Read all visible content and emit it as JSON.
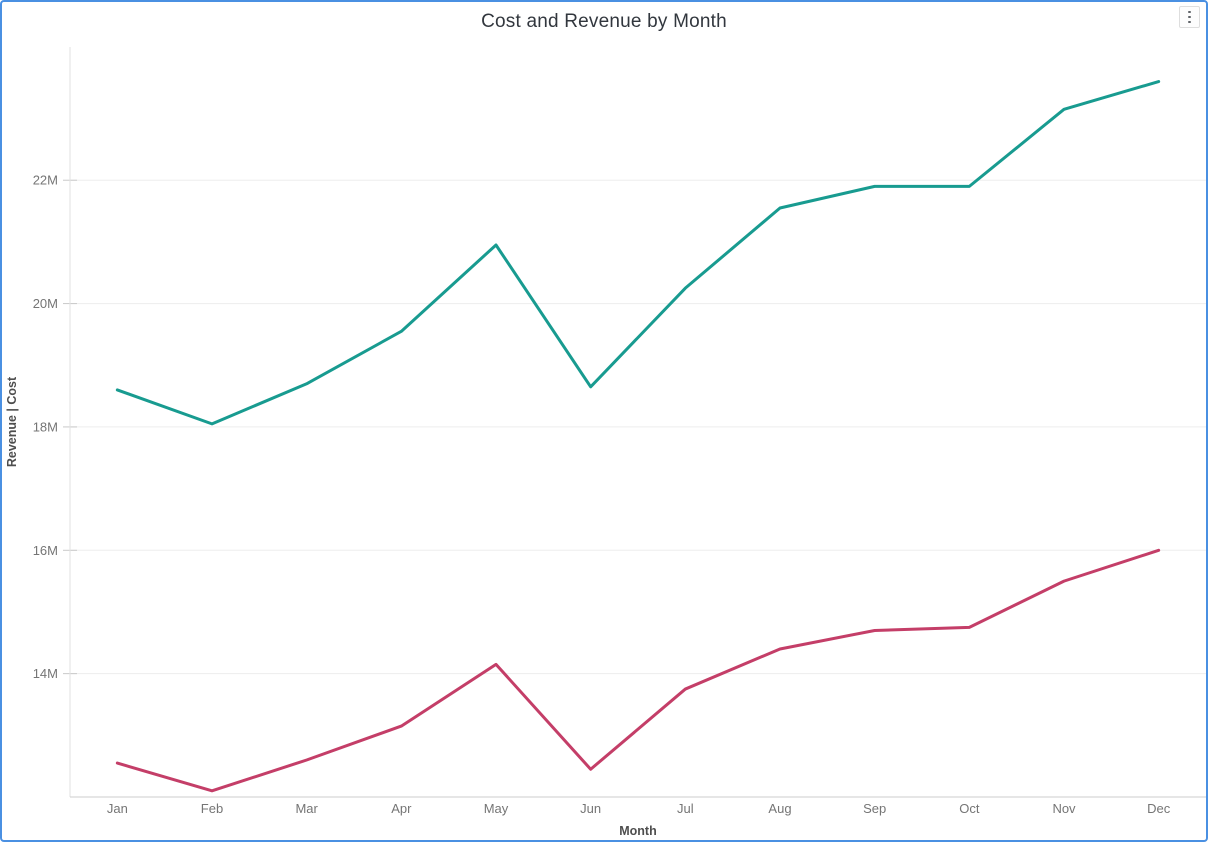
{
  "visual": {
    "title": "Cost and Revenue by Month",
    "more_options_icon": "vertical-ellipsis",
    "border_color": "#4A90E2",
    "background": "#FFFFFF",
    "title_color": "#32373E"
  },
  "chart_data": {
    "type": "line",
    "title": "Cost and Revenue by Month",
    "categories": [
      "Jan",
      "Feb",
      "Mar",
      "Apr",
      "May",
      "Jun",
      "Jul",
      "Aug",
      "Sep",
      "Oct",
      "Nov",
      "Dec"
    ],
    "series": [
      {
        "name": "Revenue",
        "color": "#189B90",
        "values": [
          18.6,
          18.05,
          18.7,
          19.55,
          20.95,
          18.65,
          20.25,
          21.55,
          21.9,
          21.9,
          23.15,
          23.6
        ]
      },
      {
        "name": "Cost",
        "color": "#C43E68",
        "values": [
          12.55,
          12.1,
          12.6,
          13.15,
          14.15,
          12.45,
          13.75,
          14.4,
          14.7,
          14.75,
          15.5,
          16.0
        ]
      }
    ],
    "unit": "M",
    "xlabel": "Month",
    "ylabel": "Revenue  |  Cost",
    "y_ticks": [
      "14M",
      "16M",
      "18M",
      "20M",
      "22M"
    ],
    "y_tick_values": [
      14,
      16,
      18,
      20,
      22
    ],
    "ylim": [
      12,
      24.16
    ],
    "grid": "horizontal",
    "legend": "none",
    "colors": {
      "revenue": "#189B90",
      "cost": "#C43E68",
      "gridline": "#EDEDED",
      "tick": "#C9C9C9",
      "y_axis_line": "#E2E2E2",
      "x_axis_line": "#CDCDCD",
      "axis_text": "#757575",
      "axis_title_text": "#4E4E4E"
    }
  }
}
